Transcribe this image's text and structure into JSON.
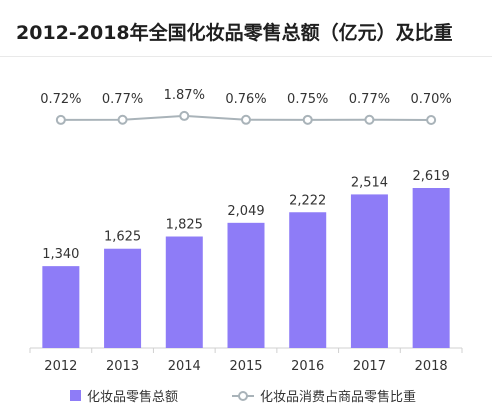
{
  "title": "2012-2018年全国化妆品零售总额（亿元）及比重",
  "colors": {
    "bar": "#8e7cf7",
    "line": "#a9b3b9",
    "marker_fill": "#ffffff",
    "axis": "#d0d0d0",
    "text": "#333333"
  },
  "chart_data": {
    "type": "bar",
    "title": "2012-2018年全国化妆品零售总额（亿元）及比重",
    "categories": [
      "2012",
      "2013",
      "2014",
      "2015",
      "2016",
      "2017",
      "2018"
    ],
    "series": [
      {
        "name": "化妆品零售总额",
        "type": "bar",
        "values": [
          1340,
          1625,
          1825,
          2049,
          2222,
          2514,
          2619
        ],
        "labels": [
          "1,340",
          "1,625",
          "1,825",
          "2,049",
          "2,222",
          "2,514",
          "2,619"
        ]
      },
      {
        "name": "化妆品消费占商品零售比重",
        "type": "line",
        "values": [
          0.72,
          0.77,
          1.87,
          0.76,
          0.75,
          0.77,
          0.7
        ],
        "labels": [
          "0.72%",
          "0.77%",
          "1.87%",
          "0.76%",
          "0.75%",
          "0.77%",
          "0.70%"
        ]
      }
    ],
    "ylim_bar": [
      0,
      2800
    ],
    "ylim_line": [
      0,
      40
    ],
    "legend_position": "bottom",
    "grid": false
  }
}
